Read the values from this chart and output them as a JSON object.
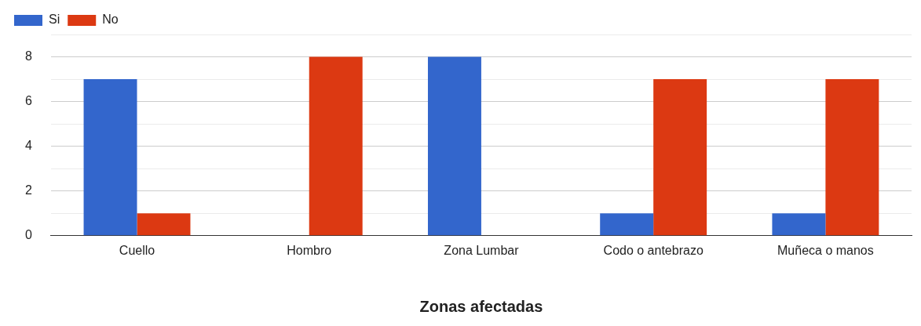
{
  "chart_data": {
    "type": "bar",
    "xlabel": "Zonas afectadas",
    "categories": [
      "Cuello",
      "Hombro",
      "Zona Lumbar",
      "Codo o antebrazo",
      "Muñeca o manos"
    ],
    "series": [
      {
        "name": "Si",
        "color": "#3366cc",
        "values": [
          7,
          0,
          8,
          1,
          1
        ]
      },
      {
        "name": "No",
        "color": "#dc3912",
        "values": [
          1,
          8,
          0,
          7,
          7
        ]
      }
    ],
    "ylim": [
      0,
      9
    ],
    "yticks": [
      0,
      {
        "value": 1,
        "label": null
      },
      2,
      {
        "value": 3,
        "label": null
      },
      4,
      {
        "value": 5,
        "label": null
      },
      6,
      {
        "value": 7,
        "label": null
      },
      8,
      {
        "value": 9,
        "label": null
      }
    ],
    "grid": "y",
    "legend": "top left"
  }
}
